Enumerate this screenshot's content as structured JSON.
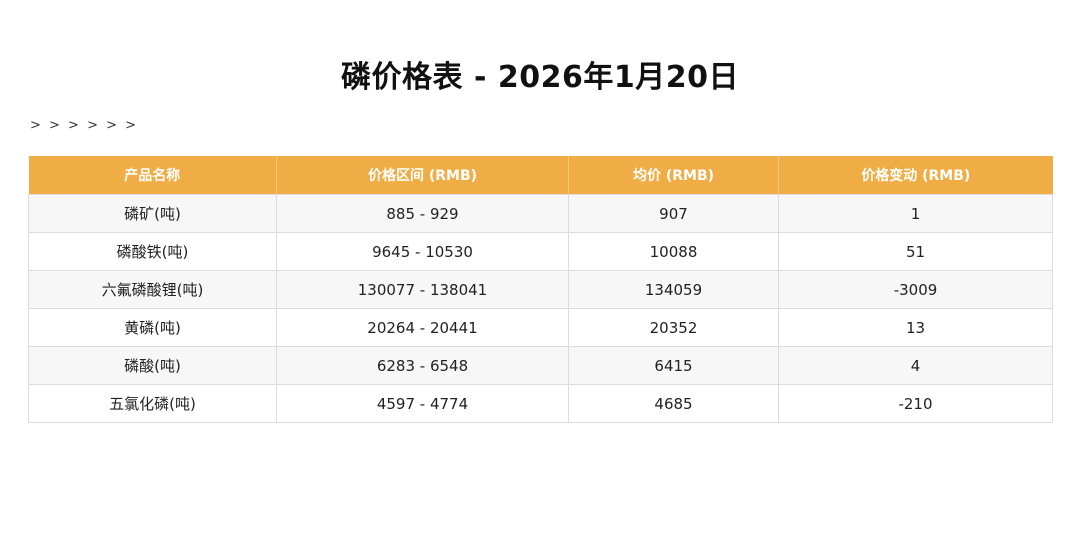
{
  "title": "磷价格表 - 2026年1月20日",
  "arrows": "> > > > > >",
  "table": {
    "headers": [
      "产品名称",
      "价格区间 (RMB)",
      "均价 (RMB)",
      "价格变动 (RMB)"
    ],
    "rows": [
      {
        "name": "磷矿(吨)",
        "range": "885 - 929",
        "avg": "907",
        "change": "1"
      },
      {
        "name": "磷酸铁(吨)",
        "range": "9645 - 10530",
        "avg": "10088",
        "change": "51"
      },
      {
        "name": "六氟磷酸锂(吨)",
        "range": "130077 - 138041",
        "avg": "134059",
        "change": "-3009"
      },
      {
        "name": "黄磷(吨)",
        "range": "20264 - 20441",
        "avg": "20352",
        "change": "13"
      },
      {
        "name": "磷酸(吨)",
        "range": "6283 - 6548",
        "avg": "6415",
        "change": "4"
      },
      {
        "name": "五氯化磷(吨)",
        "range": "4597 - 4774",
        "avg": "4685",
        "change": "-210"
      }
    ]
  },
  "colors": {
    "header_bg": "#f0ad45",
    "header_text": "#ffffff"
  }
}
